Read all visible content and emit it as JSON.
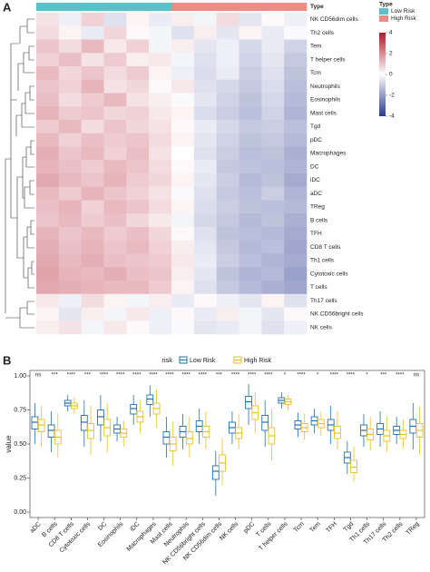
{
  "chart_data": [
    {
      "type": "heatmap",
      "legend_title": "Type",
      "groups": [
        {
          "name": "Low Risk",
          "color": "#5bc0c8"
        },
        {
          "name": "High Risk",
          "color": "#f08a86"
        }
      ],
      "column_group": [
        0,
        0,
        0,
        0,
        0,
        0,
        1,
        1,
        1,
        1,
        1,
        1
      ],
      "colorlim": [
        -4,
        4
      ],
      "colorticks": [
        4,
        2,
        0,
        -2,
        -4
      ],
      "colors": [
        "#2b3a8f",
        "#ffffff",
        "#b2182b"
      ],
      "rows": [
        "NK CD56dim cells",
        "Th2 cells",
        "Tem",
        "T helper cells",
        "Tcm",
        "Neutrophils",
        "Eosinophils",
        "Mast cells",
        "Tgd",
        "pDC",
        "Macrophages",
        "DC",
        "iDC",
        "aDC",
        "TReg",
        "B cells",
        "TFH",
        "CD8 T cells",
        "Th1 cells",
        "Cytotoxic cells",
        "T cells",
        "Th17 cells",
        "NK CD56bright cells",
        "NK cells"
      ],
      "values": [
        [
          0.5,
          -0.3,
          0.8,
          -0.6,
          0.2,
          -0.4,
          0.3,
          -0.2,
          0.6,
          -0.5,
          0.1,
          -0.3
        ],
        [
          0.6,
          0.2,
          -0.4,
          0.7,
          0.1,
          -0.2,
          -0.6,
          0.3,
          -0.5,
          0.2,
          -0.4,
          -0.1
        ],
        [
          1.0,
          0.6,
          1.2,
          0.4,
          0.8,
          -0.2,
          0.3,
          -0.5,
          -0.3,
          -0.8,
          -0.4,
          -0.9
        ],
        [
          0.8,
          1.1,
          0.5,
          0.9,
          0.3,
          0.4,
          -0.2,
          -0.6,
          -0.3,
          -0.9,
          -0.5,
          -1.1
        ],
        [
          1.2,
          0.7,
          1.0,
          0.6,
          0.9,
          0.2,
          -0.3,
          -0.7,
          -0.4,
          -1.0,
          -0.6,
          -1.2
        ],
        [
          1.0,
          0.8,
          1.3,
          0.5,
          0.7,
          0.1,
          0.4,
          -0.6,
          -0.8,
          -1.1,
          -0.7,
          -1.3
        ],
        [
          1.1,
          0.6,
          0.9,
          1.2,
          0.5,
          0.3,
          -0.1,
          -0.5,
          -0.9,
          -1.2,
          -0.8,
          -1.4
        ],
        [
          1.3,
          0.9,
          1.0,
          0.7,
          0.8,
          0.4,
          0.2,
          -0.7,
          -1.0,
          -1.3,
          -0.9,
          -1.5
        ],
        [
          0.9,
          1.2,
          0.6,
          1.0,
          0.7,
          0.5,
          0.1,
          -0.4,
          -0.8,
          -1.1,
          -1.0,
          -1.3
        ],
        [
          1.2,
          0.8,
          1.1,
          0.9,
          1.0,
          0.6,
          0.2,
          -0.5,
          -0.9,
          -1.2,
          -1.1,
          -1.4
        ],
        [
          1.4,
          1.0,
          1.2,
          0.8,
          1.1,
          0.5,
          0.0,
          -0.6,
          -1.0,
          -1.3,
          -1.2,
          -1.6
        ],
        [
          1.3,
          1.1,
          0.9,
          1.2,
          1.0,
          0.6,
          0.1,
          -0.4,
          -1.1,
          -1.2,
          -1.3,
          -1.5
        ],
        [
          1.5,
          1.2,
          1.0,
          1.3,
          0.9,
          0.7,
          0.2,
          -0.5,
          -1.0,
          -1.4,
          -1.2,
          -1.7
        ],
        [
          1.2,
          0.9,
          1.3,
          1.0,
          0.8,
          0.5,
          -0.1,
          -0.6,
          -1.1,
          -1.3,
          -1.0,
          -1.5
        ],
        [
          1.1,
          1.3,
          0.8,
          1.2,
          1.0,
          0.6,
          0.2,
          -0.7,
          -1.0,
          -1.2,
          -1.3,
          -1.4
        ],
        [
          1.0,
          1.2,
          0.9,
          1.1,
          0.7,
          0.4,
          -0.2,
          -0.8,
          -1.1,
          -1.4,
          -1.2,
          -1.6
        ],
        [
          1.3,
          1.0,
          1.2,
          0.9,
          1.1,
          0.7,
          0.1,
          -0.6,
          -1.2,
          -1.3,
          -1.4,
          -1.7
        ],
        [
          1.4,
          1.1,
          1.3,
          1.0,
          1.2,
          0.8,
          0.3,
          -0.5,
          -1.1,
          -1.4,
          -1.3,
          -1.8
        ],
        [
          1.5,
          1.2,
          1.4,
          1.1,
          1.0,
          0.9,
          0.4,
          -0.4,
          -1.0,
          -1.3,
          -1.5,
          -1.7
        ],
        [
          1.6,
          1.3,
          1.2,
          1.4,
          1.1,
          1.0,
          0.3,
          -0.5,
          -1.2,
          -1.5,
          -1.4,
          -1.9
        ],
        [
          1.5,
          1.4,
          1.3,
          1.2,
          1.2,
          0.9,
          0.2,
          -0.6,
          -1.1,
          -1.4,
          -1.6,
          -1.8
        ],
        [
          0.4,
          -0.3,
          0.6,
          0.2,
          -0.2,
          0.3,
          -0.4,
          0.1,
          -0.3,
          -0.5,
          0.2,
          -0.6
        ],
        [
          0.2,
          -0.5,
          0.3,
          -0.2,
          0.4,
          -0.3,
          0.1,
          -0.4,
          0.3,
          -0.2,
          -0.5,
          0.1
        ],
        [
          0.3,
          0.5,
          -0.2,
          0.4,
          0.1,
          -0.3,
          -0.1,
          -0.5,
          -0.4,
          -0.2,
          -0.6,
          -0.3
        ]
      ]
    },
    {
      "type": "boxplot",
      "legend_title": "risk",
      "y_label": "value",
      "categories": [
        "aDC",
        "B cells",
        "CD8 T cells",
        "Cytotoxic cells",
        "DC",
        "Eosinophils",
        "iDC",
        "Macrophages",
        "Mast cells",
        "Neutrophils",
        "NK CD56bright cells",
        "NK CD56dim cells",
        "NK cells",
        "pDC",
        "T cells",
        "T helper cells",
        "Tcm",
        "Tem",
        "TFH",
        "Tgd",
        "Th1 cells",
        "Th17 cells",
        "Th2 cells",
        "TReg"
      ],
      "significance": [
        "ns",
        "***",
        "****",
        "***",
        "****",
        "****",
        "****",
        "****",
        "****",
        "****",
        "****",
        "***",
        "****",
        "****",
        "****",
        "*",
        "****",
        "*",
        "****",
        "****",
        "*",
        "***",
        "****",
        "ns"
      ],
      "ylim": [
        -0.04,
        1.04
      ],
      "yticks": [
        {
          "value": 0,
          "label": "0.00"
        },
        {
          "value": 0.25,
          "label": "0.25"
        },
        {
          "value": 0.5,
          "label": "0.50"
        },
        {
          "value": 0.75,
          "label": "0.75"
        },
        {
          "value": 1,
          "label": "1.00"
        }
      ],
      "series": [
        {
          "name": "Low Risk",
          "color": "#1f6fb4",
          "q1": [
            0.61,
            0.55,
            0.78,
            0.6,
            0.64,
            0.58,
            0.72,
            0.79,
            0.5,
            0.55,
            0.59,
            0.24,
            0.58,
            0.76,
            0.6,
            0.8,
            0.61,
            0.64,
            0.6,
            0.36,
            0.56,
            0.57,
            0.57,
            0.58
          ],
          "median": [
            0.66,
            0.6,
            0.8,
            0.66,
            0.7,
            0.61,
            0.76,
            0.83,
            0.55,
            0.59,
            0.63,
            0.3,
            0.62,
            0.81,
            0.66,
            0.82,
            0.64,
            0.67,
            0.64,
            0.4,
            0.6,
            0.61,
            0.6,
            0.63
          ],
          "q3": [
            0.7,
            0.64,
            0.82,
            0.71,
            0.75,
            0.64,
            0.79,
            0.86,
            0.59,
            0.63,
            0.67,
            0.34,
            0.66,
            0.85,
            0.71,
            0.84,
            0.67,
            0.7,
            0.68,
            0.44,
            0.64,
            0.65,
            0.63,
            0.68
          ],
          "whislo": [
            0.5,
            0.44,
            0.74,
            0.48,
            0.52,
            0.52,
            0.64,
            0.7,
            0.4,
            0.46,
            0.5,
            0.12,
            0.5,
            0.64,
            0.48,
            0.76,
            0.55,
            0.58,
            0.5,
            0.28,
            0.48,
            0.48,
            0.5,
            0.46
          ],
          "whishi": [
            0.8,
            0.74,
            0.86,
            0.82,
            0.86,
            0.7,
            0.86,
            0.93,
            0.7,
            0.72,
            0.76,
            0.45,
            0.74,
            0.94,
            0.82,
            0.88,
            0.73,
            0.76,
            0.78,
            0.52,
            0.72,
            0.74,
            0.7,
            0.8
          ]
        },
        {
          "name": "High Risk",
          "color": "#efbf1f",
          "q1": [
            0.59,
            0.5,
            0.76,
            0.54,
            0.56,
            0.55,
            0.66,
            0.72,
            0.45,
            0.5,
            0.55,
            0.3,
            0.54,
            0.68,
            0.5,
            0.79,
            0.59,
            0.62,
            0.54,
            0.29,
            0.53,
            0.52,
            0.54,
            0.55
          ],
          "median": [
            0.64,
            0.55,
            0.78,
            0.6,
            0.62,
            0.58,
            0.7,
            0.76,
            0.5,
            0.54,
            0.59,
            0.36,
            0.58,
            0.73,
            0.56,
            0.81,
            0.62,
            0.65,
            0.58,
            0.33,
            0.57,
            0.56,
            0.57,
            0.6
          ],
          "q3": [
            0.68,
            0.6,
            0.8,
            0.65,
            0.68,
            0.61,
            0.74,
            0.8,
            0.55,
            0.59,
            0.63,
            0.42,
            0.62,
            0.78,
            0.62,
            0.83,
            0.65,
            0.68,
            0.63,
            0.38,
            0.61,
            0.6,
            0.6,
            0.65
          ],
          "whislo": [
            0.48,
            0.4,
            0.72,
            0.42,
            0.44,
            0.48,
            0.58,
            0.62,
            0.34,
            0.4,
            0.46,
            0.2,
            0.46,
            0.58,
            0.38,
            0.75,
            0.53,
            0.56,
            0.46,
            0.22,
            0.45,
            0.44,
            0.47,
            0.42
          ],
          "whishi": [
            0.78,
            0.72,
            0.84,
            0.78,
            0.8,
            0.67,
            0.82,
            0.9,
            0.66,
            0.7,
            0.74,
            0.54,
            0.72,
            0.88,
            0.76,
            0.86,
            0.72,
            0.74,
            0.74,
            0.48,
            0.7,
            0.7,
            0.68,
            0.78
          ]
        }
      ]
    }
  ]
}
